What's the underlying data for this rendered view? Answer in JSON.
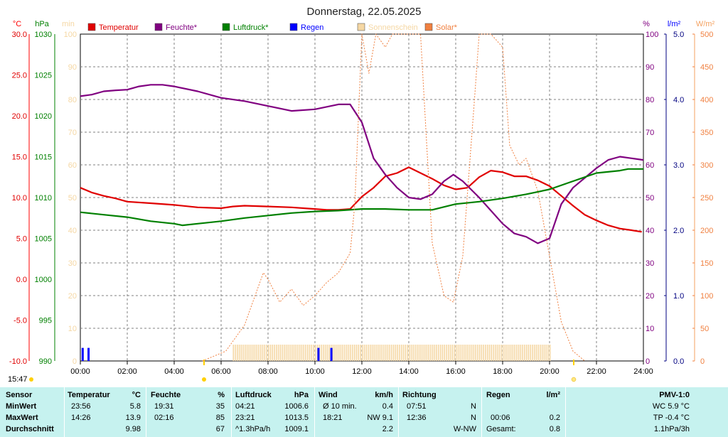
{
  "chart_data": {
    "type": "line",
    "title": "Donnerstag, 22.05.2025",
    "x_unit_hours": [
      0,
      24
    ],
    "xticks": [
      "00:00",
      "02:00",
      "04:00",
      "06:00",
      "08:00",
      "10:00",
      "12:00",
      "14:00",
      "16:00",
      "18:00",
      "20:00",
      "22:00",
      "24:00"
    ],
    "current_time": "15:47",
    "axes": {
      "temp": {
        "unit": "°C",
        "range": [
          -10,
          30
        ],
        "ticks": [
          "30.0",
          "25.0",
          "20.0",
          "15.0",
          "10.0",
          "5.0",
          "0.0",
          "-5.0",
          "-10.0"
        ],
        "color": "#ff0000"
      },
      "pressure": {
        "unit": "hPa",
        "range": [
          990,
          1030
        ],
        "ticks": [
          "1030",
          "1025",
          "1020",
          "1015",
          "1010",
          "1005",
          "1000",
          "995",
          "990"
        ],
        "color": "#008000"
      },
      "minutes": {
        "unit": "min",
        "range": [
          0,
          100
        ],
        "ticks": [
          "100",
          "90",
          "80",
          "70",
          "60",
          "50",
          "40",
          "30",
          "20",
          "10",
          "0"
        ],
        "color": "#f5d7a3"
      },
      "humidity": {
        "unit": "%",
        "range": [
          0,
          100
        ],
        "ticks": [
          "100",
          "90",
          "80",
          "70",
          "60",
          "50",
          "40",
          "30",
          "20",
          "10",
          "0"
        ],
        "color": "#800080"
      },
      "rain": {
        "unit": "l/m²",
        "range": [
          0,
          5
        ],
        "ticks": [
          "5.0",
          "4.0",
          "3.0",
          "2.0",
          "1.0",
          "0.0"
        ],
        "color": "#0000ff"
      },
      "solar": {
        "unit": "W/m²",
        "range": [
          0,
          500
        ],
        "ticks": [
          "500",
          "450",
          "400",
          "350",
          "300",
          "250",
          "200",
          "150",
          "100",
          "50",
          "0"
        ],
        "color": "#f4a261"
      }
    },
    "legend": [
      {
        "label": "Temperatur",
        "color": "#e00000"
      },
      {
        "label": "Feuchte*",
        "color": "#800080"
      },
      {
        "label": "Luftdruck*",
        "color": "#008000"
      },
      {
        "label": "Regen",
        "color": "#0000ff"
      },
      {
        "label": "Sonnenschein",
        "color": "#f5d7a3"
      },
      {
        "label": "Solar*",
        "color": "#f08040"
      }
    ],
    "series": [
      {
        "name": "Temperatur",
        "axis": "temp",
        "color": "#e00000",
        "points": [
          [
            0,
            11.2
          ],
          [
            0.5,
            10.6
          ],
          [
            1,
            10.2
          ],
          [
            1.5,
            9.9
          ],
          [
            2,
            9.5
          ],
          [
            3,
            9.3
          ],
          [
            4,
            9.1
          ],
          [
            5,
            8.8
          ],
          [
            6,
            8.7
          ],
          [
            6.5,
            8.9
          ],
          [
            7,
            9.0
          ],
          [
            8,
            8.9
          ],
          [
            9,
            8.8
          ],
          [
            10,
            8.6
          ],
          [
            10.5,
            8.5
          ],
          [
            11,
            8.5
          ],
          [
            11.5,
            8.6
          ],
          [
            12,
            10.1
          ],
          [
            12.5,
            11.2
          ],
          [
            13,
            12.6
          ],
          [
            13.5,
            13.0
          ],
          [
            14,
            13.7
          ],
          [
            14.5,
            13.0
          ],
          [
            15,
            12.3
          ],
          [
            15.5,
            11.5
          ],
          [
            16,
            11.0
          ],
          [
            16.5,
            11.2
          ],
          [
            17,
            12.5
          ],
          [
            17.5,
            13.3
          ],
          [
            18,
            13.1
          ],
          [
            18.5,
            12.6
          ],
          [
            19,
            12.6
          ],
          [
            19.5,
            12.1
          ],
          [
            20,
            11.4
          ],
          [
            20.5,
            10.2
          ],
          [
            21,
            9.0
          ],
          [
            21.5,
            7.9
          ],
          [
            22,
            7.2
          ],
          [
            22.5,
            6.6
          ],
          [
            23,
            6.2
          ],
          [
            23.5,
            6.0
          ],
          [
            23.93,
            5.8
          ]
        ]
      },
      {
        "name": "Feuchte*",
        "axis": "humidity",
        "color": "#800080",
        "points": [
          [
            0,
            81
          ],
          [
            0.5,
            81.5
          ],
          [
            1,
            82.5
          ],
          [
            1.5,
            82.8
          ],
          [
            2,
            83
          ],
          [
            2.5,
            84
          ],
          [
            3,
            84.5
          ],
          [
            3.5,
            84.5
          ],
          [
            4,
            84
          ],
          [
            5,
            82.5
          ],
          [
            6,
            80.5
          ],
          [
            7,
            79.5
          ],
          [
            8,
            78
          ],
          [
            9,
            76.5
          ],
          [
            10,
            77
          ],
          [
            11,
            78.5
          ],
          [
            11.5,
            78.5
          ],
          [
            12,
            73
          ],
          [
            12.5,
            62
          ],
          [
            13,
            57
          ],
          [
            13.5,
            53
          ],
          [
            14,
            50
          ],
          [
            14.5,
            49.5
          ],
          [
            15,
            51
          ],
          [
            15.5,
            55
          ],
          [
            15.9,
            57
          ],
          [
            16.3,
            55
          ],
          [
            17,
            50
          ],
          [
            17.5,
            46
          ],
          [
            18,
            42
          ],
          [
            18.5,
            39
          ],
          [
            19,
            38
          ],
          [
            19.5,
            36
          ],
          [
            20,
            37.5
          ],
          [
            20.5,
            48
          ],
          [
            21,
            53
          ],
          [
            21.5,
            56
          ],
          [
            22,
            59
          ],
          [
            22.5,
            61.5
          ],
          [
            23,
            62.5
          ],
          [
            23.5,
            62
          ],
          [
            24,
            61.5
          ]
        ]
      },
      {
        "name": "Luftdruck*",
        "axis": "pressure",
        "color": "#008000",
        "points": [
          [
            0,
            1008.2
          ],
          [
            1,
            1007.9
          ],
          [
            2,
            1007.6
          ],
          [
            3,
            1007.1
          ],
          [
            4,
            1006.8
          ],
          [
            4.35,
            1006.6
          ],
          [
            5,
            1006.8
          ],
          [
            6,
            1007.1
          ],
          [
            7,
            1007.5
          ],
          [
            8,
            1007.8
          ],
          [
            9,
            1008.1
          ],
          [
            10,
            1008.3
          ],
          [
            11,
            1008.4
          ],
          [
            12,
            1008.6
          ],
          [
            13,
            1008.6
          ],
          [
            14,
            1008.5
          ],
          [
            15,
            1008.5
          ],
          [
            16,
            1009.2
          ],
          [
            17,
            1009.5
          ],
          [
            18,
            1009.9
          ],
          [
            19,
            1010.4
          ],
          [
            20,
            1011.0
          ],
          [
            21,
            1012.0
          ],
          [
            22,
            1013.0
          ],
          [
            23,
            1013.3
          ],
          [
            23.35,
            1013.5
          ],
          [
            24,
            1013.5
          ]
        ]
      },
      {
        "name": "Solar*",
        "axis": "solar",
        "color": "#f08040",
        "points": [
          [
            5.2,
            0
          ],
          [
            6.2,
            15
          ],
          [
            7,
            55
          ],
          [
            7.5,
            105
          ],
          [
            7.8,
            135
          ],
          [
            8,
            125
          ],
          [
            8.5,
            90
          ],
          [
            9,
            110
          ],
          [
            9.5,
            85
          ],
          [
            10,
            100
          ],
          [
            10.5,
            120
          ],
          [
            11,
            135
          ],
          [
            11.5,
            165
          ],
          [
            11.7,
            240
          ],
          [
            12,
            500
          ],
          [
            12.3,
            440
          ],
          [
            12.6,
            500
          ],
          [
            13,
            480
          ],
          [
            13.3,
            500
          ],
          [
            13.6,
            500
          ],
          [
            14,
            500
          ],
          [
            14.5,
            500
          ],
          [
            15,
            180
          ],
          [
            15.5,
            100
          ],
          [
            15.9,
            90
          ],
          [
            16.3,
            160
          ],
          [
            16.8,
            400
          ],
          [
            17,
            500
          ],
          [
            17.5,
            500
          ],
          [
            18,
            480
          ],
          [
            18.3,
            330
          ],
          [
            18.7,
            300
          ],
          [
            19,
            310
          ],
          [
            19.5,
            260
          ],
          [
            20,
            160
          ],
          [
            20.5,
            60
          ],
          [
            21,
            15
          ],
          [
            21.5,
            0
          ]
        ]
      }
    ],
    "sunshine_bars": [
      [
        6.5,
        20
      ]
    ],
    "rain_events": [
      [
        0.1,
        0.2
      ],
      [
        0.35,
        0.2
      ],
      [
        10.15,
        0.2
      ],
      [
        10.7,
        0.2
      ]
    ]
  },
  "stats": {
    "headers": {
      "sensor": "Sensor",
      "temp": "Temperatur",
      "temp_unit": "°C",
      "hum": "Feuchte",
      "hum_unit": "%",
      "press": "Luftdruck",
      "press_unit": "hPa",
      "wind": "Wind",
      "wind_unit": "km/h",
      "dir": "Richtung",
      "rain": "Regen",
      "rain_unit": "l/m²",
      "pmv": "PMV-1:0"
    },
    "rows": [
      {
        "label": "MinWert",
        "temp_time": "23:56",
        "temp_val": "5.8",
        "hum_time": "19:31",
        "hum_val": "35",
        "press_time": "04:21",
        "press_val": "1006.6",
        "wind_time": "Ø 10 min.",
        "wind_val": "0.4",
        "dir_time": "07:51",
        "dir_val": "N",
        "rain_time": "",
        "rain_val": "",
        "pmv": "WC 5.9 °C"
      },
      {
        "label": "MaxWert",
        "temp_time": "14:26",
        "temp_val": "13.9",
        "hum_time": "02:16",
        "hum_val": "85",
        "press_time": "23:21",
        "press_val": "1013.5",
        "wind_time": "18:21",
        "wind_val": "NW 9.1",
        "dir_time": "12:36",
        "dir_val": "N",
        "rain_time": "00:06",
        "rain_val": "0.2",
        "pmv": "TP -0.4 °C"
      },
      {
        "label": "Durchschnitt",
        "temp_time": "",
        "temp_val": "9.98",
        "hum_time": "",
        "hum_val": "67",
        "press_time": "^1.3hPa/h",
        "press_val": "1009.1",
        "wind_time": "",
        "wind_val": "2.2",
        "dir_time": "",
        "dir_val": "W-NW",
        "rain_time": "Gesamt:",
        "rain_val": "0.8",
        "pmv": "1.1hPa/3h"
      }
    ]
  }
}
